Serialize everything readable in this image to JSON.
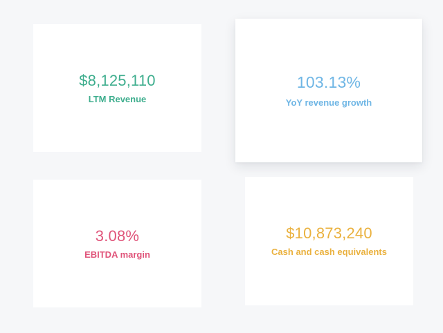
{
  "metrics": {
    "ltm_revenue": {
      "value": "$8,125,110",
      "label": "LTM Revenue",
      "color": "#3fae8e"
    },
    "yoy_growth": {
      "value": "103.13%",
      "label": "YoY revenue growth",
      "color": "#6fb6e5"
    },
    "ebitda_margin": {
      "value": "3.08%",
      "label": "EBITDA margin",
      "color": "#e0547a"
    },
    "cash": {
      "value": "$10,873,240",
      "label": "Cash and cash equivalents",
      "color": "#eab13e"
    }
  }
}
